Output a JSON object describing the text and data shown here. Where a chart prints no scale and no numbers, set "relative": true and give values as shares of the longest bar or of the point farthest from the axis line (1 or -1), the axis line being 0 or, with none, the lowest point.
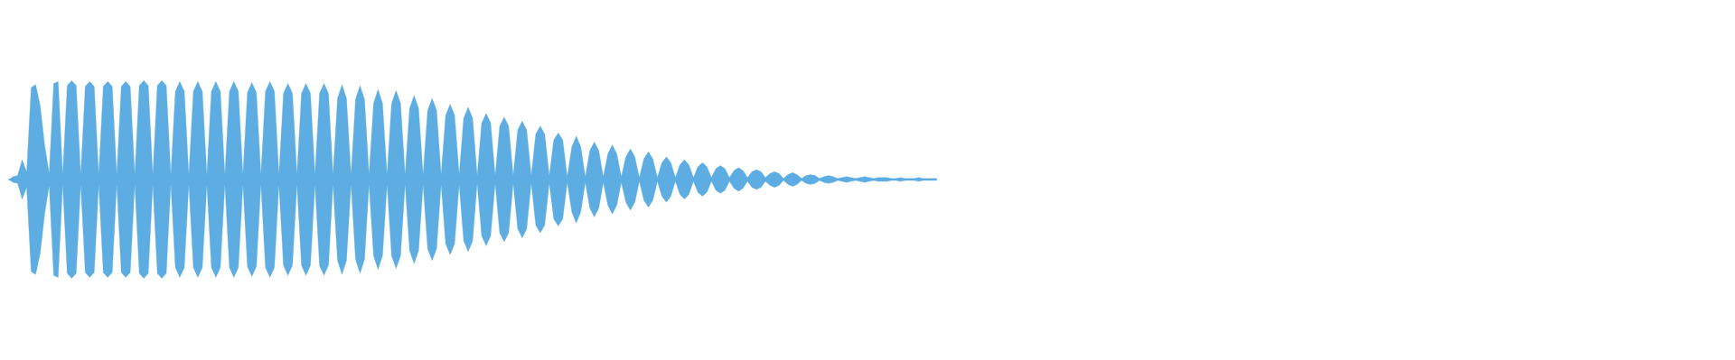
{
  "chart_data": {
    "type": "area",
    "relative": true,
    "categories": [
      null,
      null,
      null,
      null,
      null,
      null,
      null,
      null,
      null,
      null,
      null,
      null,
      null,
      null,
      null,
      null,
      null,
      null,
      null,
      null,
      null,
      null,
      null,
      null,
      null,
      null,
      null,
      null,
      null,
      null,
      null,
      null,
      null,
      null,
      null,
      null,
      null,
      null,
      null,
      null,
      null,
      null,
      null,
      null,
      null,
      null,
      null,
      null,
      null,
      null,
      null,
      null,
      null,
      null,
      null,
      null,
      null,
      null,
      null,
      null,
      null,
      null,
      null,
      null,
      null,
      null,
      null,
      null,
      null,
      null,
      null,
      null,
      null,
      null,
      null,
      null,
      null,
      null,
      null,
      null,
      null,
      null,
      null,
      null,
      null,
      null,
      null,
      null,
      null,
      null,
      null,
      null,
      null,
      null,
      null,
      null,
      null,
      null,
      null,
      null,
      null,
      null,
      null,
      null,
      null,
      null,
      null,
      null,
      null,
      null,
      null,
      null,
      null,
      null,
      null,
      null,
      null,
      null,
      null,
      null,
      null,
      null,
      null,
      null,
      null,
      null,
      null,
      null,
      null,
      null,
      null,
      null,
      null,
      null,
      null,
      null,
      null,
      null,
      null,
      null,
      null,
      null,
      null,
      null,
      null,
      null,
      null,
      null,
      null,
      null,
      null,
      null,
      null,
      null,
      null,
      null,
      null,
      null,
      null,
      null,
      null,
      null,
      null,
      null,
      null,
      null,
      null,
      null,
      null,
      null,
      null,
      null,
      null,
      null,
      null,
      null,
      null,
      null,
      null,
      null,
      null,
      null,
      null,
      null,
      null,
      null,
      null,
      null,
      null,
      null,
      null,
      null,
      null,
      null,
      null,
      null,
      null,
      null,
      null,
      null,
      null,
      null,
      null,
      null,
      null,
      null,
      null
    ],
    "series": [
      {
        "color": "#5dade2",
        "values": [
          0,
          0.03,
          0.04,
          0.2,
          0.08,
          0.93,
          0.96,
          0.75,
          0.35,
          0.06,
          0.97,
          0.99,
          0.05,
          0.95,
          1,
          0.95,
          0.05,
          0.94,
          0.99,
          0.94,
          0.05,
          0.94,
          0.99,
          0.94,
          0.05,
          0.94,
          0.99,
          0.94,
          0.05,
          0.95,
          1,
          0.95,
          0.05,
          0.95,
          1,
          0.95,
          0.05,
          0.89,
          0.99,
          0.89,
          0.05,
          0.89,
          0.99,
          0.89,
          0.05,
          0.89,
          0.99,
          0.89,
          0.05,
          0.89,
          0.99,
          0.89,
          0.05,
          0.88,
          0.98,
          0.88,
          0.05,
          0.89,
          0.99,
          0.89,
          0.05,
          0.87,
          0.97,
          0.87,
          0.05,
          0.87,
          0.97,
          0.87,
          0.05,
          0.87,
          0.97,
          0.87,
          0.05,
          0.82,
          0.96,
          0.82,
          0.05,
          0.81,
          0.95,
          0.81,
          0.05,
          0.77,
          0.91,
          0.77,
          0.05,
          0.77,
          0.9,
          0.77,
          0.05,
          0.72,
          0.85,
          0.72,
          0.05,
          0.7,
          0.82,
          0.7,
          0.05,
          0.65,
          0.76,
          0.65,
          0.05,
          0.62,
          0.73,
          0.62,
          0.04,
          0.57,
          0.67,
          0.57,
          0.04,
          0.54,
          0.63,
          0.54,
          0.04,
          0.5,
          0.59,
          0.5,
          0.04,
          0.46,
          0.54,
          0.46,
          0.04,
          0.4,
          0.47,
          0.4,
          0.03,
          0.33,
          0.44,
          0.33,
          0.03,
          0.29,
          0.38,
          0.29,
          0.03,
          0.26,
          0.35,
          0.26,
          0.03,
          0.23,
          0.31,
          0.23,
          0.02,
          0.21,
          0.28,
          0.21,
          0.02,
          0.17,
          0.23,
          0.17,
          0.02,
          0.15,
          0.2,
          0.15,
          0.02,
          0.13,
          0.17,
          0.13,
          0.02,
          0.11,
          0.14,
          0.11,
          0.02,
          0.09,
          0.12,
          0.09,
          0.02,
          0.08,
          0.1,
          0.08,
          0.02,
          0.06,
          0.08,
          0.06,
          0.01,
          0.05,
          0.07,
          0.05,
          0.01,
          0.04,
          0.05,
          0.04,
          0.01,
          0.03,
          0.04,
          0.03,
          0.01,
          0.02,
          0.03,
          0.02,
          0.01,
          0.02,
          0.03,
          0.02,
          0.01,
          0.02,
          0.02,
          0.02,
          0.01,
          0.01,
          0.02,
          0.01,
          0.01,
          0.01,
          0.02,
          0.01,
          0.01,
          0.01,
          0.01
        ]
      },
      {
        "color": "#5dade2",
        "values": [
          0,
          -0.03,
          -0.04,
          -0.2,
          -0.08,
          -0.93,
          -0.96,
          -0.75,
          -0.35,
          -0.06,
          -0.97,
          -0.99,
          -0.05,
          -0.95,
          -1,
          -0.95,
          -0.05,
          -0.94,
          -0.99,
          -0.94,
          -0.05,
          -0.94,
          -0.99,
          -0.94,
          -0.05,
          -0.94,
          -0.99,
          -0.94,
          -0.05,
          -0.95,
          -1,
          -0.95,
          -0.05,
          -0.95,
          -1,
          -0.95,
          -0.05,
          -0.89,
          -0.99,
          -0.89,
          -0.05,
          -0.89,
          -0.99,
          -0.89,
          -0.05,
          -0.89,
          -0.99,
          -0.89,
          -0.05,
          -0.89,
          -0.99,
          -0.89,
          -0.05,
          -0.88,
          -0.98,
          -0.88,
          -0.05,
          -0.89,
          -0.99,
          -0.89,
          -0.05,
          -0.87,
          -0.97,
          -0.87,
          -0.05,
          -0.87,
          -0.97,
          -0.87,
          -0.05,
          -0.87,
          -0.97,
          -0.87,
          -0.05,
          -0.82,
          -0.96,
          -0.82,
          -0.05,
          -0.81,
          -0.95,
          -0.81,
          -0.05,
          -0.77,
          -0.91,
          -0.77,
          -0.05,
          -0.77,
          -0.9,
          -0.77,
          -0.05,
          -0.72,
          -0.85,
          -0.72,
          -0.05,
          -0.7,
          -0.82,
          -0.7,
          -0.05,
          -0.65,
          -0.76,
          -0.65,
          -0.05,
          -0.62,
          -0.73,
          -0.62,
          -0.04,
          -0.57,
          -0.67,
          -0.57,
          -0.04,
          -0.54,
          -0.63,
          -0.54,
          -0.04,
          -0.5,
          -0.59,
          -0.5,
          -0.04,
          -0.46,
          -0.54,
          -0.46,
          -0.04,
          -0.4,
          -0.47,
          -0.4,
          -0.03,
          -0.33,
          -0.44,
          -0.33,
          -0.03,
          -0.29,
          -0.38,
          -0.29,
          -0.03,
          -0.26,
          -0.35,
          -0.26,
          -0.03,
          -0.23,
          -0.31,
          -0.23,
          -0.02,
          -0.21,
          -0.28,
          -0.21,
          -0.02,
          -0.17,
          -0.23,
          -0.17,
          -0.02,
          -0.15,
          -0.2,
          -0.15,
          -0.02,
          -0.13,
          -0.17,
          -0.13,
          -0.02,
          -0.11,
          -0.14,
          -0.11,
          -0.02,
          -0.09,
          -0.12,
          -0.09,
          -0.02,
          -0.08,
          -0.1,
          -0.08,
          -0.02,
          -0.06,
          -0.08,
          -0.06,
          -0.01,
          -0.05,
          -0.07,
          -0.05,
          -0.01,
          -0.04,
          -0.05,
          -0.04,
          -0.01,
          -0.03,
          -0.04,
          -0.03,
          -0.01,
          -0.02,
          -0.03,
          -0.02,
          -0.01,
          -0.02,
          -0.03,
          -0.02,
          -0.01,
          -0.02,
          -0.02,
          -0.02,
          -0.01,
          -0.01,
          -0.02,
          -0.01,
          -0.01,
          -0.01,
          -0.02,
          -0.01,
          -0.01,
          -0.01,
          -0.01
        ]
      }
    ]
  }
}
